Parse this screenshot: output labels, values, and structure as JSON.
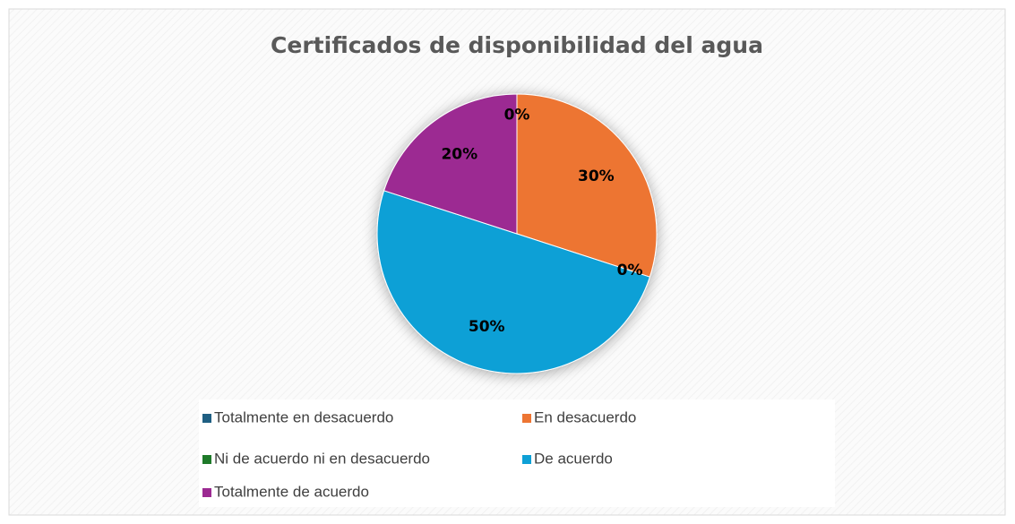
{
  "chart_data": {
    "type": "pie",
    "title": "Certificados de disponibilidad del agua",
    "categories": [
      "Totalmente en desacuerdo",
      "En desacuerdo",
      "Ni de acuerdo ni en desacuerdo",
      "De acuerdo",
      "Totalmente de acuerdo"
    ],
    "values": [
      0,
      30,
      0,
      50,
      20
    ],
    "value_labels": [
      "0%",
      "30%",
      "0%",
      "50%",
      "20%"
    ],
    "colors": [
      "#1f5f82",
      "#ed7533",
      "#1e7a2a",
      "#0ea0d6",
      "#9c2a92"
    ],
    "legend": "bottom"
  }
}
